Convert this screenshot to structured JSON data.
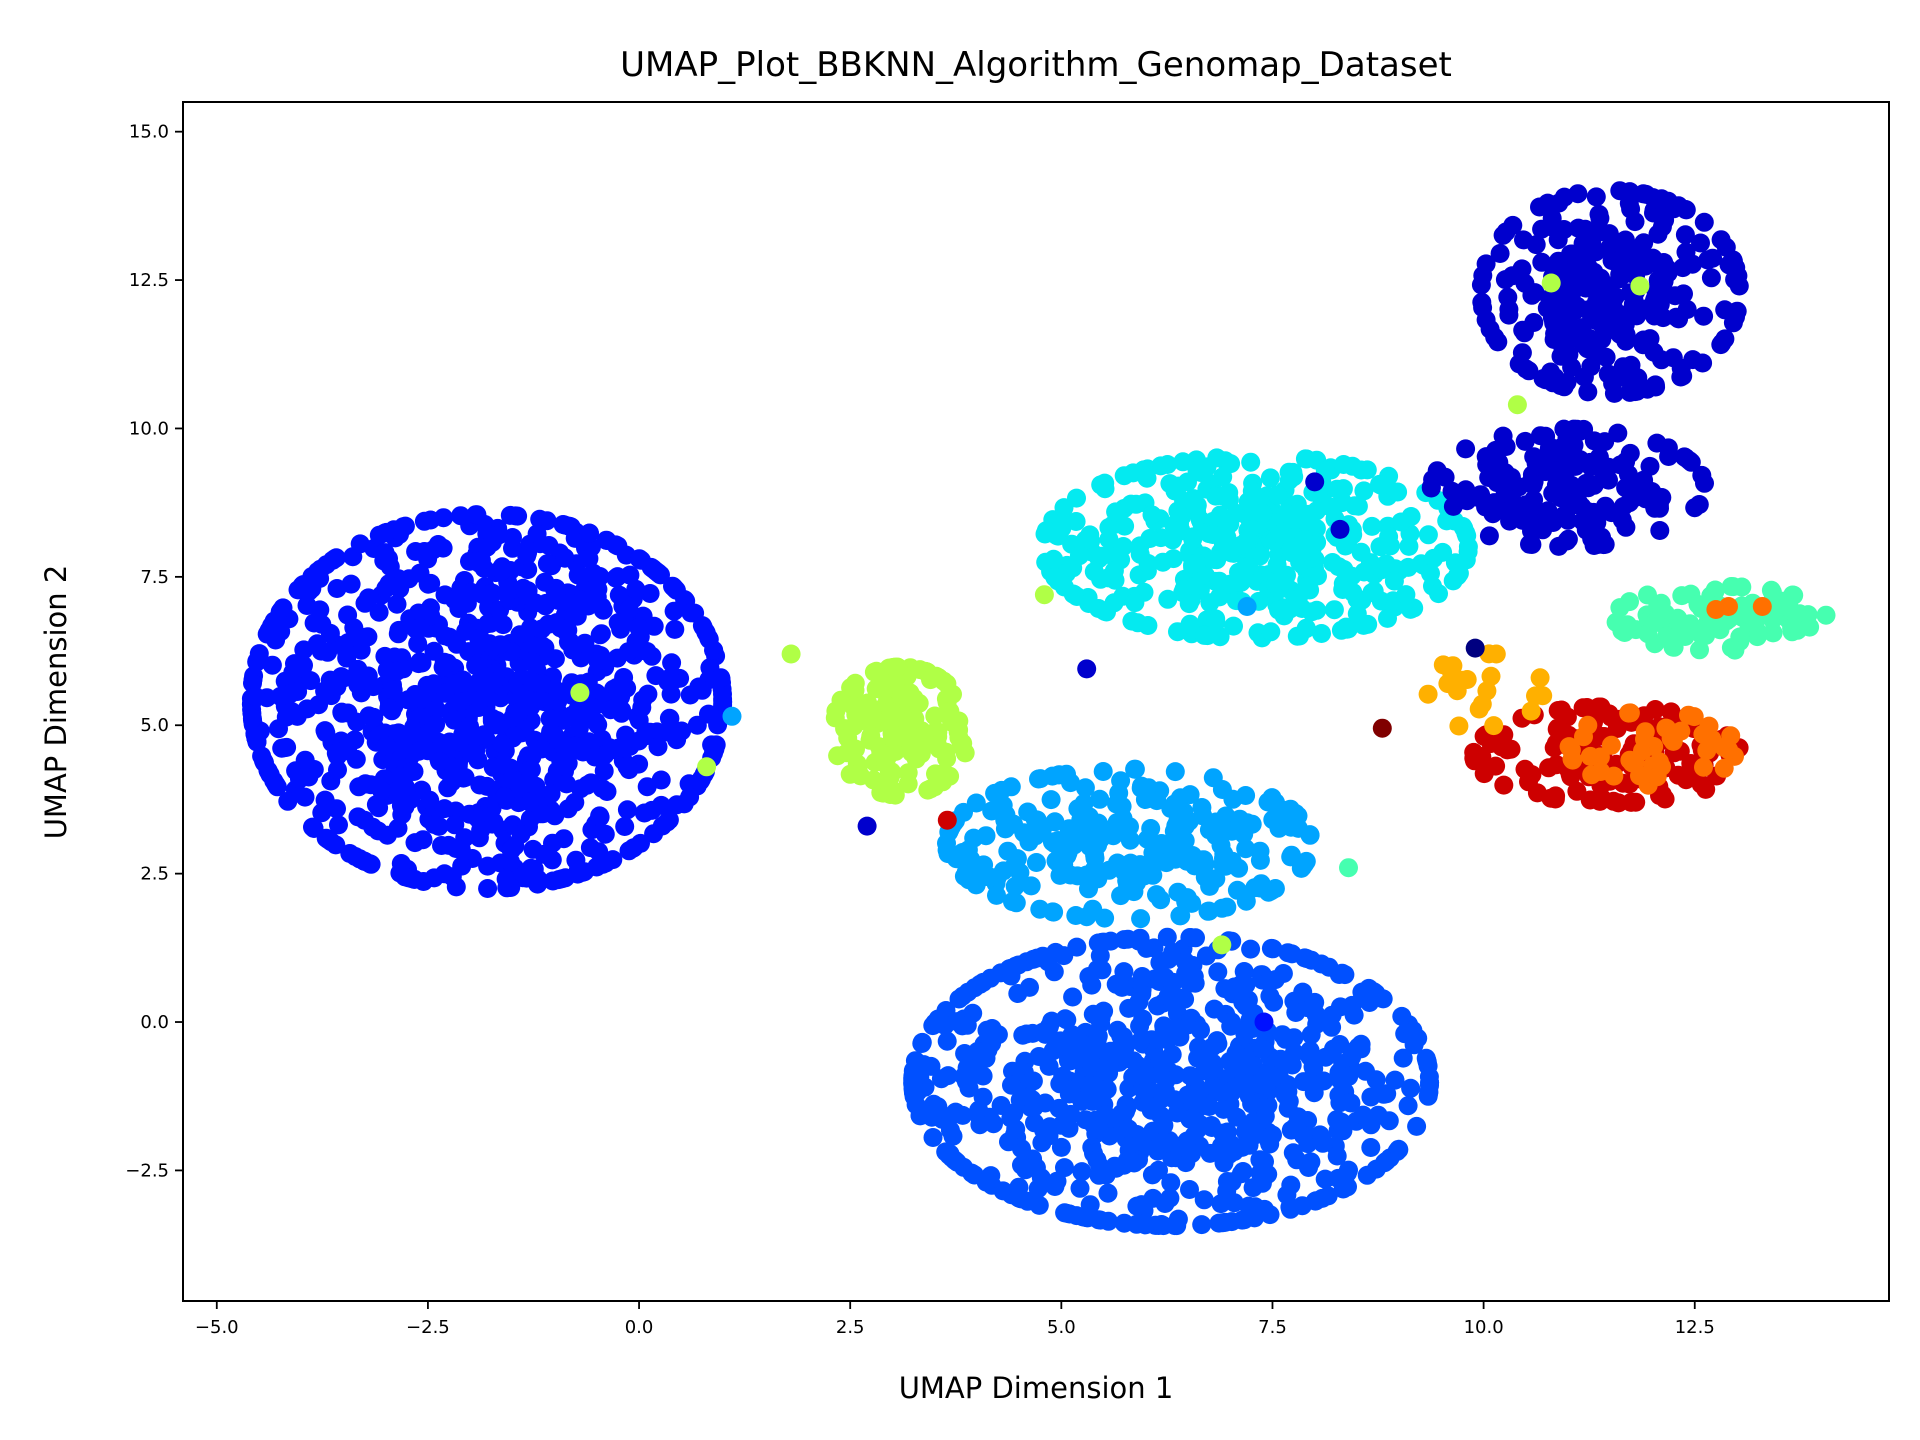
{
  "chart_data": {
    "type": "scatter",
    "title": "UMAP_Plot_BBKNN_Algorithm_Genomap_Dataset",
    "xlabel": "UMAP Dimension 1",
    "ylabel": "UMAP Dimension 2",
    "xlim": [
      -5.4,
      14.8
    ],
    "ylim": [
      -4.7,
      15.5
    ],
    "xticks": [
      -5.0,
      -2.5,
      0.0,
      2.5,
      5.0,
      7.5,
      10.0,
      12.5
    ],
    "xtick_labels": [
      "−5.0",
      "−2.5",
      "0.0",
      "2.5",
      "5.0",
      "7.5",
      "10.0",
      "12.5"
    ],
    "yticks": [
      -2.5,
      0.0,
      2.5,
      5.0,
      7.5,
      10.0,
      12.5,
      15.0
    ],
    "ytick_labels": [
      "−2.5",
      "0.0",
      "2.5",
      "5.0",
      "7.5",
      "10.0",
      "12.5",
      "15.0"
    ],
    "grid": false,
    "legend": "none",
    "clusters": [
      {
        "color": "#0010ff",
        "cx": -1.8,
        "cy": 5.4,
        "sx": 1.55,
        "sy": 1.75,
        "n": 950
      },
      {
        "color": "#0050ff",
        "cx": 6.3,
        "cy": -1.0,
        "sx": 1.7,
        "sy": 1.35,
        "n": 750
      },
      {
        "color": "#00a4ff",
        "cx": 5.8,
        "cy": 3.0,
        "sx": 1.2,
        "sy": 0.7,
        "n": 260
      },
      {
        "color": "#04eaf0",
        "cx": 7.3,
        "cy": 8.0,
        "sx": 1.4,
        "sy": 0.85,
        "n": 420
      },
      {
        "color": "#0000cd",
        "cx": 11.5,
        "cy": 12.3,
        "sx": 0.85,
        "sy": 0.95,
        "n": 280
      },
      {
        "color": "#0000cd",
        "cx": 11.0,
        "cy": 9.0,
        "sx": 0.9,
        "sy": 0.55,
        "n": 160
      },
      {
        "color": "#b0ff46",
        "cx": 3.1,
        "cy": 4.9,
        "sx": 0.45,
        "sy": 0.6,
        "n": 150
      },
      {
        "color": "#46ffb0",
        "cx": 12.8,
        "cy": 6.8,
        "sx": 0.7,
        "sy": 0.3,
        "n": 90
      },
      {
        "color": "#cd0000",
        "cx": 11.5,
        "cy": 4.5,
        "sx": 0.9,
        "sy": 0.45,
        "n": 140
      },
      {
        "color": "#ff7000",
        "cx": 12.0,
        "cy": 4.6,
        "sx": 0.55,
        "sy": 0.35,
        "n": 45
      },
      {
        "color": "#ffb000",
        "cx": 9.9,
        "cy": 5.6,
        "sx": 0.45,
        "sy": 0.35,
        "n": 20
      }
    ],
    "points": [
      {
        "x": 10.8,
        "y": 12.45,
        "color": "#b0ff46"
      },
      {
        "x": 11.85,
        "y": 12.4,
        "color": "#b0ff46"
      },
      {
        "x": 10.4,
        "y": 10.4,
        "color": "#b0ff46"
      },
      {
        "x": -0.7,
        "y": 5.55,
        "color": "#b0ff46"
      },
      {
        "x": 0.8,
        "y": 4.3,
        "color": "#b0ff46"
      },
      {
        "x": 1.8,
        "y": 6.2,
        "color": "#b0ff46"
      },
      {
        "x": 4.8,
        "y": 7.2,
        "color": "#b0ff46"
      },
      {
        "x": 6.9,
        "y": 1.3,
        "color": "#b0ff46"
      },
      {
        "x": 3.65,
        "y": 3.4,
        "color": "#cd0000"
      },
      {
        "x": 7.4,
        "y": 0.0,
        "color": "#0010ff"
      },
      {
        "x": 7.2,
        "y": 7.0,
        "color": "#00a4ff"
      },
      {
        "x": 1.1,
        "y": 5.15,
        "color": "#00a4ff"
      },
      {
        "x": 3.9,
        "y": 2.9,
        "color": "#00a4ff"
      },
      {
        "x": 8.4,
        "y": 2.6,
        "color": "#46ffb0"
      },
      {
        "x": 12.75,
        "y": 6.95,
        "color": "#ff7000"
      },
      {
        "x": 12.9,
        "y": 7.0,
        "color": "#ff7000"
      },
      {
        "x": 13.3,
        "y": 7.0,
        "color": "#ff7000"
      },
      {
        "x": 9.9,
        "y": 6.3,
        "color": "#000080"
      },
      {
        "x": 8.8,
        "y": 4.95,
        "color": "#800000"
      },
      {
        "x": 10.15,
        "y": 6.2,
        "color": "#ffb000"
      },
      {
        "x": 8.3,
        "y": 8.3,
        "color": "#0000cd"
      },
      {
        "x": 8.0,
        "y": 9.1,
        "color": "#0000cd"
      },
      {
        "x": 5.3,
        "y": 5.95,
        "color": "#0000cd"
      },
      {
        "x": 2.7,
        "y": 3.3,
        "color": "#0000cd"
      }
    ]
  }
}
